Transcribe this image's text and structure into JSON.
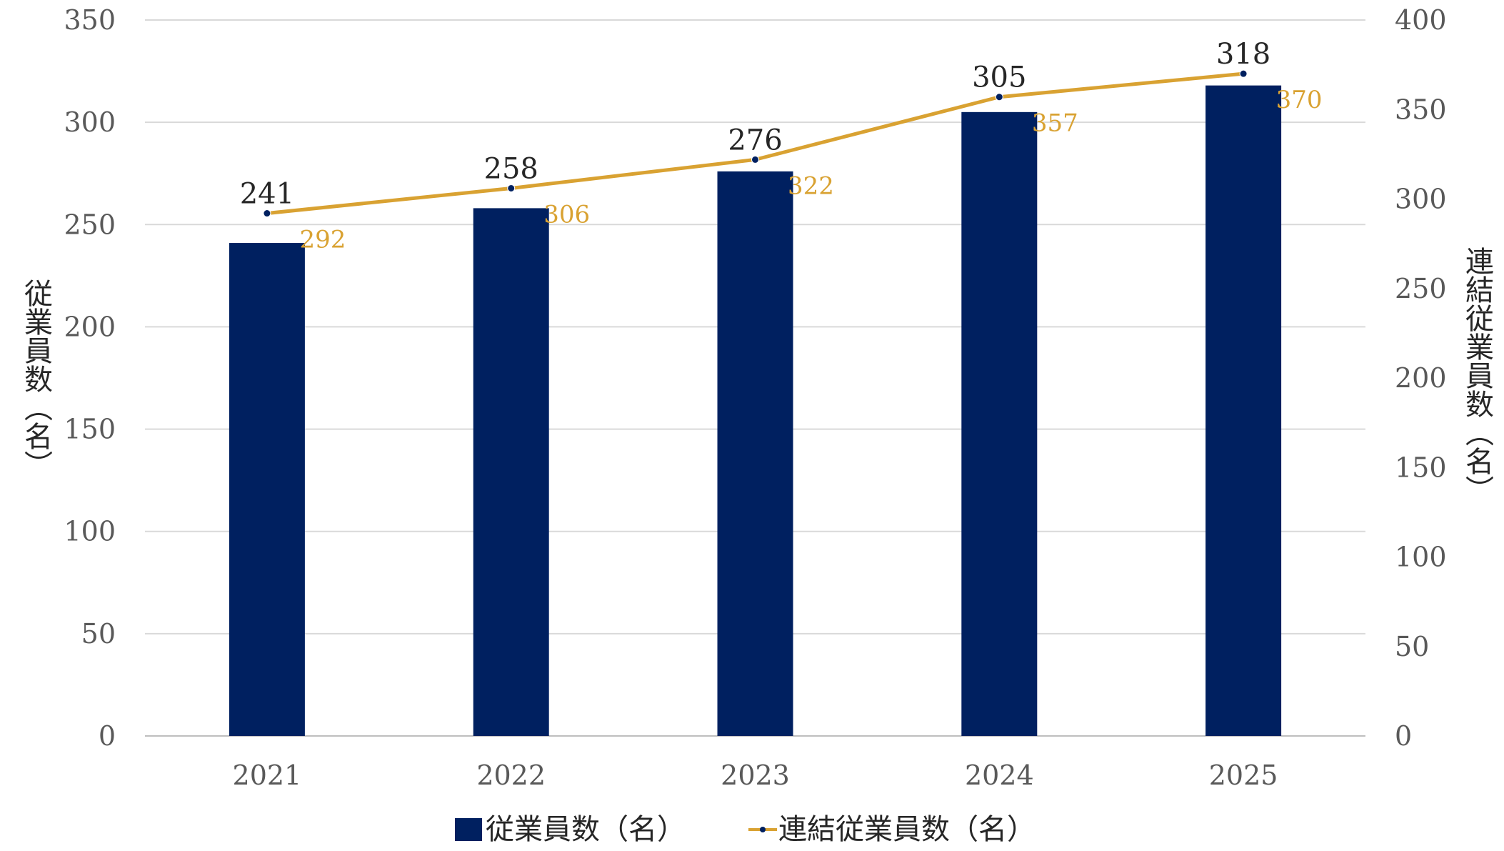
{
  "chart_data": {
    "type": "bar",
    "categories": [
      "2021",
      "2022",
      "2023",
      "2024",
      "2025"
    ],
    "series": [
      {
        "name": "従業員数（名）",
        "kind": "bar",
        "axis": "left",
        "values": [
          241,
          258,
          276,
          305,
          318
        ],
        "color": "#002060"
      },
      {
        "name": "連結従業員数（名）",
        "kind": "line",
        "axis": "right",
        "values": [
          292,
          306,
          322,
          357,
          370
        ],
        "color": "#D9A232"
      }
    ],
    "ylabel": "従業員数（名）",
    "y2label": "連結従業員数（名）",
    "ylim": [
      0,
      350
    ],
    "y2lim": [
      0,
      400
    ],
    "yticks": [
      0,
      50,
      100,
      150,
      200,
      250,
      300,
      350
    ],
    "y2ticks": [
      0,
      50,
      100,
      150,
      200,
      250,
      300,
      350,
      400
    ],
    "grid": true,
    "legend_position": "bottom",
    "data_labels": true,
    "colors": {
      "bar": "#002060",
      "line": "#D9A232",
      "grid": "#D9D9D9"
    }
  }
}
